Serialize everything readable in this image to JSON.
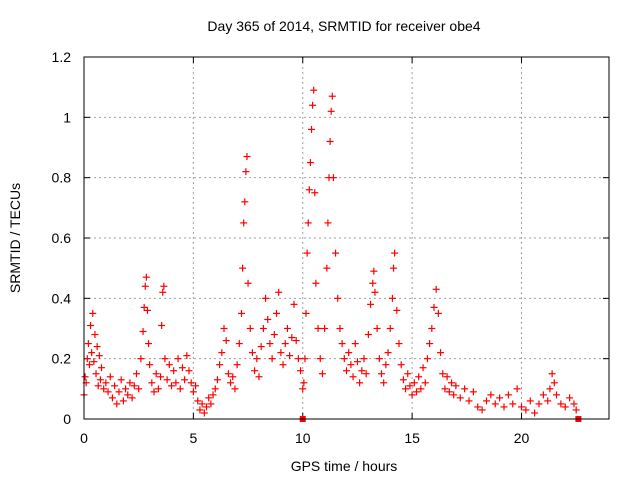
{
  "chart_data": {
    "type": "scatter",
    "title": "Day 365 of 2014, SRMTID for receiver obe4",
    "xlabel": "GPS time / hours",
    "ylabel": "SRMTID / TECUs",
    "xlim": [
      0,
      24
    ],
    "ylim": [
      0,
      1.2
    ],
    "x_ticks": [
      0,
      5,
      10,
      15,
      20
    ],
    "x_tick_labels": [
      "0",
      "5",
      "10",
      "15",
      "20"
    ],
    "y_ticks": [
      0,
      0.2,
      0.4,
      0.6,
      0.8,
      1.0,
      1.2
    ],
    "y_tick_labels": [
      "0",
      "0.2",
      "0.4",
      "0.6",
      "0.8",
      "1",
      "1.2"
    ],
    "grid": true,
    "series": [
      {
        "name": "SRMTID",
        "marker": "plus",
        "color": "#ff0000",
        "points": [
          [
            0.0,
            0.08
          ],
          [
            0.05,
            0.14
          ],
          [
            0.1,
            0.12
          ],
          [
            0.15,
            0.2
          ],
          [
            0.2,
            0.25
          ],
          [
            0.25,
            0.18
          ],
          [
            0.3,
            0.31
          ],
          [
            0.35,
            0.22
          ],
          [
            0.4,
            0.35
          ],
          [
            0.45,
            0.19
          ],
          [
            0.5,
            0.28
          ],
          [
            0.55,
            0.15
          ],
          [
            0.6,
            0.24
          ],
          [
            0.65,
            0.11
          ],
          [
            0.7,
            0.21
          ],
          [
            0.75,
            0.13
          ],
          [
            0.8,
            0.17
          ],
          [
            0.9,
            0.1
          ],
          [
            1.0,
            0.12
          ],
          [
            1.1,
            0.09
          ],
          [
            1.2,
            0.14
          ],
          [
            1.3,
            0.07
          ],
          [
            1.4,
            0.11
          ],
          [
            1.5,
            0.05
          ],
          [
            1.6,
            0.09
          ],
          [
            1.7,
            0.13
          ],
          [
            1.8,
            0.06
          ],
          [
            1.9,
            0.1
          ],
          [
            2.0,
            0.08
          ],
          [
            2.1,
            0.12
          ],
          [
            2.2,
            0.07
          ],
          [
            2.3,
            0.11
          ],
          [
            2.4,
            0.15
          ],
          [
            2.5,
            0.1
          ],
          [
            2.6,
            0.2
          ],
          [
            2.7,
            0.29
          ],
          [
            2.75,
            0.37
          ],
          [
            2.8,
            0.44
          ],
          [
            2.85,
            0.47
          ],
          [
            2.9,
            0.36
          ],
          [
            2.95,
            0.25
          ],
          [
            3.0,
            0.18
          ],
          [
            3.1,
            0.12
          ],
          [
            3.2,
            0.09
          ],
          [
            3.3,
            0.15
          ],
          [
            3.4,
            0.1
          ],
          [
            3.5,
            0.14
          ],
          [
            3.55,
            0.31
          ],
          [
            3.6,
            0.42
          ],
          [
            3.65,
            0.44
          ],
          [
            3.7,
            0.2
          ],
          [
            3.8,
            0.13
          ],
          [
            3.9,
            0.18
          ],
          [
            4.0,
            0.11
          ],
          [
            4.1,
            0.16
          ],
          [
            4.2,
            0.12
          ],
          [
            4.3,
            0.2
          ],
          [
            4.4,
            0.1
          ],
          [
            4.5,
            0.17
          ],
          [
            4.6,
            0.13
          ],
          [
            4.7,
            0.21
          ],
          [
            4.8,
            0.16
          ],
          [
            4.9,
            0.12
          ],
          [
            5.0,
            0.09
          ],
          [
            5.1,
            0.11
          ],
          [
            5.2,
            0.06
          ],
          [
            5.3,
            0.03
          ],
          [
            5.4,
            0.05
          ],
          [
            5.5,
            0.02
          ],
          [
            5.6,
            0.04
          ],
          [
            5.7,
            0.07
          ],
          [
            5.8,
            0.05
          ],
          [
            5.9,
            0.08
          ],
          [
            6.0,
            0.1
          ],
          [
            6.1,
            0.13
          ],
          [
            6.2,
            0.18
          ],
          [
            6.3,
            0.22
          ],
          [
            6.4,
            0.3
          ],
          [
            6.5,
            0.26
          ],
          [
            6.6,
            0.15
          ],
          [
            6.7,
            0.12
          ],
          [
            6.8,
            0.14
          ],
          [
            6.9,
            0.1
          ],
          [
            7.0,
            0.18
          ],
          [
            7.1,
            0.25
          ],
          [
            7.2,
            0.35
          ],
          [
            7.25,
            0.5
          ],
          [
            7.3,
            0.65
          ],
          [
            7.35,
            0.72
          ],
          [
            7.4,
            0.82
          ],
          [
            7.45,
            0.87
          ],
          [
            7.5,
            0.45
          ],
          [
            7.6,
            0.3
          ],
          [
            7.7,
            0.22
          ],
          [
            7.8,
            0.16
          ],
          [
            7.9,
            0.2
          ],
          [
            8.0,
            0.14
          ],
          [
            8.1,
            0.24
          ],
          [
            8.2,
            0.3
          ],
          [
            8.3,
            0.4
          ],
          [
            8.4,
            0.33
          ],
          [
            8.5,
            0.25
          ],
          [
            8.6,
            0.2
          ],
          [
            8.7,
            0.28
          ],
          [
            8.8,
            0.35
          ],
          [
            8.9,
            0.42
          ],
          [
            9.0,
            0.22
          ],
          [
            9.1,
            0.18
          ],
          [
            9.2,
            0.25
          ],
          [
            9.3,
            0.3
          ],
          [
            9.4,
            0.21
          ],
          [
            9.5,
            0.27
          ],
          [
            9.6,
            0.38
          ],
          [
            9.7,
            0.26
          ],
          [
            9.8,
            0.2
          ],
          [
            9.9,
            0.16
          ],
          [
            10.0,
            0.1
          ],
          [
            10.05,
            0.12
          ],
          [
            10.1,
            0.2
          ],
          [
            10.15,
            0.35
          ],
          [
            10.2,
            0.55
          ],
          [
            10.25,
            0.65
          ],
          [
            10.3,
            0.76
          ],
          [
            10.35,
            0.85
          ],
          [
            10.4,
            0.96
          ],
          [
            10.45,
            1.04
          ],
          [
            10.5,
            1.09
          ],
          [
            10.55,
            0.75
          ],
          [
            10.6,
            0.45
          ],
          [
            10.7,
            0.3
          ],
          [
            10.8,
            0.2
          ],
          [
            10.9,
            0.15
          ],
          [
            11.0,
            0.3
          ],
          [
            11.1,
            0.5
          ],
          [
            11.15,
            0.65
          ],
          [
            11.2,
            0.8
          ],
          [
            11.25,
            0.92
          ],
          [
            11.3,
            1.02
          ],
          [
            11.35,
            1.07
          ],
          [
            11.4,
            0.8
          ],
          [
            11.5,
            0.55
          ],
          [
            11.6,
            0.4
          ],
          [
            11.7,
            0.3
          ],
          [
            11.8,
            0.25
          ],
          [
            11.9,
            0.2
          ],
          [
            12.0,
            0.16
          ],
          [
            12.1,
            0.22
          ],
          [
            12.2,
            0.18
          ],
          [
            12.3,
            0.14
          ],
          [
            12.4,
            0.25
          ],
          [
            12.5,
            0.19
          ],
          [
            12.6,
            0.12
          ],
          [
            12.7,
            0.16
          ],
          [
            12.8,
            0.2
          ],
          [
            12.9,
            0.15
          ],
          [
            13.0,
            0.28
          ],
          [
            13.1,
            0.38
          ],
          [
            13.2,
            0.45
          ],
          [
            13.25,
            0.49
          ],
          [
            13.3,
            0.42
          ],
          [
            13.4,
            0.3
          ],
          [
            13.5,
            0.2
          ],
          [
            13.6,
            0.15
          ],
          [
            13.7,
            0.12
          ],
          [
            13.8,
            0.18
          ],
          [
            13.9,
            0.22
          ],
          [
            14.0,
            0.3
          ],
          [
            14.1,
            0.4
          ],
          [
            14.15,
            0.5
          ],
          [
            14.2,
            0.55
          ],
          [
            14.3,
            0.36
          ],
          [
            14.4,
            0.25
          ],
          [
            14.5,
            0.18
          ],
          [
            14.6,
            0.13
          ],
          [
            14.7,
            0.1
          ],
          [
            14.8,
            0.15
          ],
          [
            14.9,
            0.11
          ],
          [
            15.0,
            0.08
          ],
          [
            15.1,
            0.12
          ],
          [
            15.2,
            0.09
          ],
          [
            15.3,
            0.14
          ],
          [
            15.4,
            0.1
          ],
          [
            15.5,
            0.17
          ],
          [
            15.6,
            0.12
          ],
          [
            15.7,
            0.2
          ],
          [
            15.8,
            0.25
          ],
          [
            15.9,
            0.3
          ],
          [
            16.0,
            0.37
          ],
          [
            16.1,
            0.43
          ],
          [
            16.2,
            0.35
          ],
          [
            16.3,
            0.22
          ],
          [
            16.4,
            0.15
          ],
          [
            16.5,
            0.1
          ],
          [
            16.6,
            0.14
          ],
          [
            16.7,
            0.09
          ],
          [
            16.8,
            0.12
          ],
          [
            16.9,
            0.08
          ],
          [
            17.0,
            0.11
          ],
          [
            17.2,
            0.07
          ],
          [
            17.4,
            0.1
          ],
          [
            17.6,
            0.06
          ],
          [
            17.8,
            0.09
          ],
          [
            18.0,
            0.04
          ],
          [
            18.2,
            0.03
          ],
          [
            18.4,
            0.06
          ],
          [
            18.6,
            0.08
          ],
          [
            18.8,
            0.05
          ],
          [
            19.0,
            0.07
          ],
          [
            19.2,
            0.04
          ],
          [
            19.4,
            0.08
          ],
          [
            19.6,
            0.05
          ],
          [
            19.8,
            0.1
          ],
          [
            20.0,
            0.04
          ],
          [
            20.2,
            0.03
          ],
          [
            20.4,
            0.06
          ],
          [
            20.6,
            0.02
          ],
          [
            20.8,
            0.05
          ],
          [
            21.0,
            0.08
          ],
          [
            21.2,
            0.06
          ],
          [
            21.3,
            0.1
          ],
          [
            21.4,
            0.15
          ],
          [
            21.5,
            0.12
          ],
          [
            21.6,
            0.08
          ],
          [
            21.8,
            0.05
          ],
          [
            22.0,
            0.04
          ],
          [
            22.2,
            0.07
          ],
          [
            22.4,
            0.05
          ],
          [
            22.5,
            0.03
          ]
        ]
      }
    ],
    "square_markers": [
      [
        10.0,
        0.0
      ],
      [
        22.6,
        0.0
      ]
    ]
  }
}
